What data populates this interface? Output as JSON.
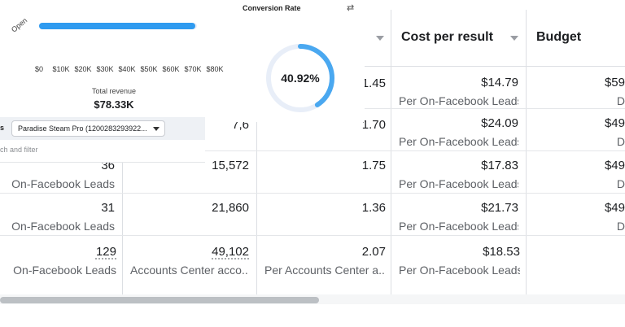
{
  "dashboard": {
    "revenue": {
      "bar_label": "Open",
      "bar_fill_fraction": 0.99,
      "x_ticks": [
        "$0",
        "$10K",
        "$20K",
        "$30K",
        "$40K",
        "$50K",
        "$60K",
        "$70K",
        "$80K"
      ],
      "total_label": "Total revenue",
      "total_value": "$78.33K"
    },
    "conversion": {
      "title": "Conversion Rate",
      "swap_icon": "swap-arrows-icon",
      "value": "40.92%",
      "fraction": 0.4092,
      "color": "#4aa8f0"
    },
    "filter": {
      "label_fragment": "s",
      "selected": "Paradise Steam Pro (1200283293922...",
      "search_placeholder": "ch and filter"
    }
  },
  "table": {
    "headers": {
      "cost_per_result": "Cost per result",
      "budget": "Budget"
    },
    "rows": [
      {
        "c3": "",
        "c3_sub": "",
        "c4": "1.45",
        "cost": "$14.79",
        "cost_sub": "Per On-Facebook Leads",
        "budget": "$59",
        "budget_sub": "D"
      },
      {
        "c3": "7,6",
        "c3_sub": "",
        "c4": "1.70",
        "cost": "$24.09",
        "cost_sub": "Per On-Facebook Leads",
        "budget": "$49",
        "budget_sub": "D"
      },
      {
        "results": "36",
        "results_sub": "On-Facebook Leads",
        "c3": "15,572",
        "c4": "1.75",
        "cost": "$17.83",
        "cost_sub": "Per On-Facebook Leads",
        "budget": "$49",
        "budget_sub": "D"
      },
      {
        "results": "31",
        "results_sub": "On-Facebook Leads",
        "c3": "21,860",
        "c4": "1.36",
        "cost": "$21.73",
        "cost_sub": "Per On-Facebook Leads",
        "budget": "$49",
        "budget_sub": "D"
      }
    ],
    "total": {
      "results": "129",
      "results_sub": "On-Facebook Leads",
      "c3": "49,102",
      "c3_sub": "Accounts Center acco...",
      "c4": "2.07",
      "c4_sub": "Per Accounts Center a...",
      "cost": "$18.53",
      "cost_sub": "Per On-Facebook Leads"
    }
  }
}
